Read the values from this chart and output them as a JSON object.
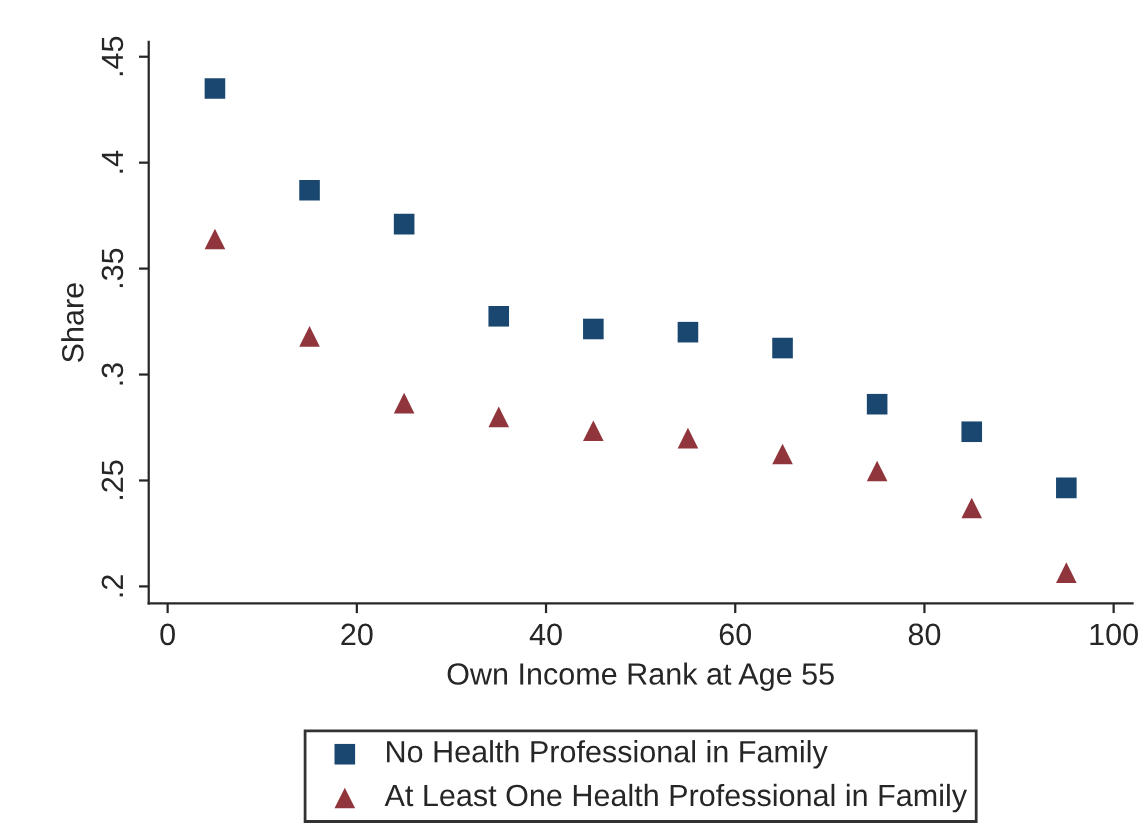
{
  "chart_data": {
    "type": "scatter",
    "xlabel": "Own Income Rank at Age 55",
    "ylabel": "Share",
    "x": [
      5,
      15,
      25,
      35,
      45,
      55,
      65,
      75,
      85,
      95
    ],
    "series": [
      {
        "name": "No Health Professional in Family",
        "color": "#1a476f",
        "marker": "square",
        "values": [
          0.435,
          0.387,
          0.371,
          0.3275,
          0.3215,
          0.32,
          0.3125,
          0.286,
          0.273,
          0.2465
        ]
      },
      {
        "name": "At Least One Health Professional in Family",
        "color": "#90353b",
        "marker": "triangle",
        "values": [
          0.364,
          0.318,
          0.2865,
          0.28,
          0.2735,
          0.27,
          0.2625,
          0.2545,
          0.237,
          0.2065
        ]
      }
    ],
    "xlim": [
      -2,
      102
    ],
    "ylim": [
      0.192,
      0.457
    ],
    "xticks": [
      0,
      20,
      40,
      60,
      80,
      100
    ],
    "yticks": [
      {
        "value": 0.2,
        "label": ".2"
      },
      {
        "value": 0.25,
        "label": ".25"
      },
      {
        "value": 0.3,
        "label": ".3"
      },
      {
        "value": 0.35,
        "label": ".35"
      },
      {
        "value": 0.4,
        "label": ".4"
      },
      {
        "value": 0.45,
        "label": ".45"
      }
    ],
    "grid": false,
    "legend": "bottom"
  }
}
